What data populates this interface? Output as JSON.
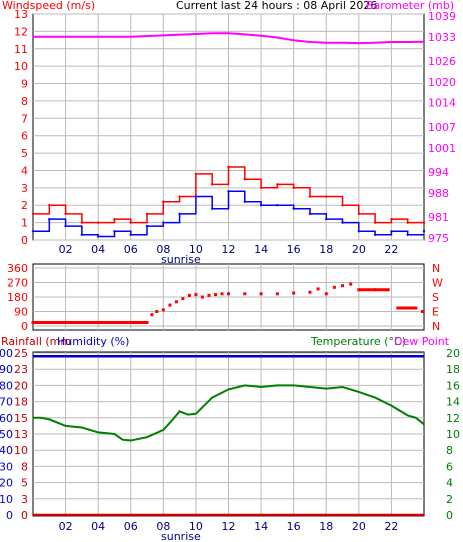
{
  "colors": {
    "wind": "#cc0000",
    "gust_red": "#ff0000",
    "wind_blue": "#0000ff",
    "barometer": "#ff00ff",
    "temperature": "#008000",
    "dew_point": "#ff00ff",
    "humidity": "#0000cc",
    "rainfall": "#cc0000",
    "grid": "#bbbbbb",
    "frame": "#000000"
  },
  "chart_data": [
    {
      "type": "line",
      "title": "Current last 24 hours : 08 April 2026",
      "left_label": "Windspeed (m/s)",
      "right_label": "Barometer (mb)",
      "x_ticks": [
        "02",
        "04",
        "06",
        "08",
        "10",
        "12",
        "14",
        "16",
        "18",
        "20",
        "22"
      ],
      "x_annotation": "sunrise",
      "y_ticks_left": [
        "0",
        "1",
        "2",
        "3",
        "4",
        "5",
        "6",
        "7",
        "8",
        "9",
        "10",
        "11",
        "12",
        "13"
      ],
      "y_ticks_right": [
        "975",
        "981",
        "988",
        "994",
        "1001",
        "1007",
        "1014",
        "1020",
        "1026",
        "1033",
        "1039"
      ],
      "ylim_left": [
        0,
        13
      ],
      "x_range_hours": [
        0,
        24
      ],
      "series": [
        {
          "name": "Barometer",
          "x_hours": [
            0,
            2,
            4,
            6,
            8,
            10,
            11,
            12,
            13,
            14,
            15,
            16,
            17,
            18,
            19,
            20,
            21,
            22,
            23,
            24
          ],
          "values": [
            1033,
            1033,
            1033,
            1033,
            1033.4,
            1033.8,
            1034,
            1034,
            1033.7,
            1033.3,
            1032.8,
            1032,
            1031.5,
            1031.3,
            1031.3,
            1031.2,
            1031.3,
            1031.5,
            1031.5,
            1031.6
          ]
        },
        {
          "name": "Gust",
          "x_hours": [
            0,
            1,
            2,
            3,
            4,
            5,
            6,
            7,
            8,
            9,
            10,
            11,
            12,
            13,
            14,
            15,
            16,
            17,
            18,
            19,
            20,
            21,
            22,
            23,
            24
          ],
          "values": [
            1.5,
            2.0,
            1.5,
            1.0,
            1.0,
            1.2,
            1.0,
            1.5,
            2.2,
            2.5,
            3.8,
            3.2,
            4.2,
            3.5,
            3.0,
            3.2,
            3.0,
            2.5,
            2.5,
            2.0,
            1.5,
            1.0,
            1.2,
            1.0,
            1.0
          ]
        },
        {
          "name": "Windspeed",
          "x_hours": [
            0,
            1,
            2,
            3,
            4,
            5,
            6,
            7,
            8,
            9,
            10,
            11,
            12,
            13,
            14,
            15,
            16,
            17,
            18,
            19,
            20,
            21,
            22,
            23,
            24
          ],
          "values": [
            0.5,
            1.2,
            0.8,
            0.3,
            0.2,
            0.5,
            0.3,
            0.8,
            1.0,
            1.5,
            2.5,
            1.8,
            2.8,
            2.2,
            2.0,
            2.0,
            1.8,
            1.5,
            1.2,
            1.0,
            0.5,
            0.3,
            0.5,
            0.3,
            0.5
          ]
        }
      ]
    },
    {
      "type": "scatter",
      "title": "",
      "y_ticks_left": [
        "0",
        "90",
        "180",
        "270",
        "360"
      ],
      "y_ticks_right": [
        "N",
        "E",
        "S",
        "W",
        "N"
      ],
      "ylim": [
        0,
        360
      ],
      "series": [
        {
          "name": "Wind direction",
          "x_hours": [
            0,
            1,
            2,
            3,
            4,
            5,
            6,
            7,
            7.3,
            7.6,
            8.0,
            8.4,
            8.8,
            9.2,
            9.6,
            10.0,
            10.4,
            10.8,
            11.2,
            11.6,
            12,
            13,
            14,
            15,
            16,
            17,
            17.5,
            18,
            18.5,
            19,
            19.5,
            20,
            21,
            21.8,
            22.5,
            23,
            23.5,
            23.9
          ],
          "values": [
            22,
            22,
            22,
            22,
            22,
            22,
            22,
            22,
            70,
            90,
            100,
            130,
            150,
            170,
            190,
            195,
            180,
            190,
            195,
            200,
            200,
            200,
            200,
            200,
            205,
            210,
            230,
            200,
            240,
            250,
            260,
            225,
            225,
            225,
            112,
            112,
            112,
            90
          ]
        }
      ]
    },
    {
      "type": "line",
      "left_label": "Rainfall (mm",
      "left_label_2": "Humidity (%)",
      "right_label": "Temperature (°C)",
      "right_label_2": "Dew Point",
      "x_ticks": [
        "02",
        "04",
        "06",
        "08",
        "10",
        "12",
        "14",
        "16",
        "18",
        "20",
        "22"
      ],
      "x_annotation": "sunrise",
      "y_ticks_left_humidity": [
        "0",
        "10",
        "20",
        "30",
        "40",
        "50",
        "60",
        "70",
        "80",
        "90",
        "100"
      ],
      "y_ticks_left_rain": [
        "0",
        "3",
        "5",
        "8",
        "10",
        "13",
        "15",
        "18",
        "20",
        "23",
        "25"
      ],
      "y_ticks_right": [
        "0",
        "2",
        "4",
        "6",
        "8",
        "10",
        "12",
        "14",
        "16",
        "18",
        "20"
      ],
      "ylim_right": [
        0,
        20
      ],
      "series": [
        {
          "name": "Humidity",
          "x_hours": [
            0,
            24
          ],
          "values": [
            98,
            98
          ]
        },
        {
          "name": "Rainfall",
          "x_hours": [
            0,
            24
          ],
          "values": [
            0,
            0
          ]
        },
        {
          "name": "Temperature",
          "x_hours": [
            0,
            0.5,
            1,
            2,
            3,
            4,
            5,
            5.5,
            6,
            7,
            8,
            8.5,
            9,
            9.5,
            10,
            11,
            12,
            13,
            14,
            15,
            16,
            17,
            18,
            19,
            20,
            21,
            22,
            23,
            23.5,
            24
          ],
          "values": [
            12,
            12,
            11.8,
            11,
            10.8,
            10.2,
            10,
            9.3,
            9.2,
            9.6,
            10.5,
            11.6,
            12.8,
            12.4,
            12.5,
            14.5,
            15.5,
            16,
            15.8,
            16,
            16,
            15.8,
            15.6,
            15.8,
            15.2,
            14.5,
            13.5,
            12.3,
            12,
            11.2
          ]
        }
      ]
    }
  ]
}
